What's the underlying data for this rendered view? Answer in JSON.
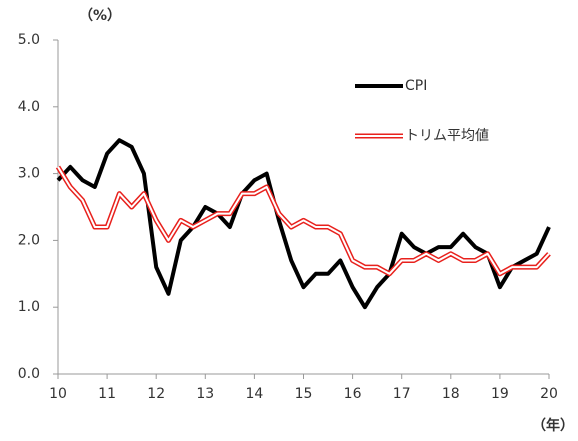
{
  "chart_data": {
    "type": "line",
    "y_label": "（%）",
    "x_label": "（年）",
    "x": [
      10,
      10.25,
      10.5,
      10.75,
      11,
      11.25,
      11.5,
      11.75,
      12,
      12.25,
      12.5,
      12.75,
      13,
      13.25,
      13.5,
      13.75,
      14,
      14.25,
      14.5,
      14.75,
      15,
      15.25,
      15.5,
      15.75,
      16,
      16.25,
      16.5,
      16.75,
      17,
      17.25,
      17.5,
      17.75,
      18,
      18.25,
      18.5,
      18.75,
      19,
      19.25,
      19.5,
      19.75,
      20
    ],
    "series": [
      {
        "name": "CPI",
        "color": "#000000",
        "style": "solid",
        "values": [
          2.9,
          3.1,
          2.9,
          2.8,
          3.3,
          3.5,
          3.4,
          3.0,
          1.6,
          1.2,
          2.0,
          2.2,
          2.5,
          2.4,
          2.2,
          2.7,
          2.9,
          3.0,
          2.3,
          1.7,
          1.3,
          1.5,
          1.5,
          1.7,
          1.3,
          1.0,
          1.3,
          1.5,
          2.1,
          1.9,
          1.8,
          1.9,
          1.9,
          2.1,
          1.9,
          1.8,
          1.3,
          1.6,
          1.7,
          1.8,
          2.2
        ]
      },
      {
        "name": "トリム平均値",
        "color": "#e8211d",
        "style": "double",
        "values": [
          3.1,
          2.8,
          2.6,
          2.2,
          2.2,
          2.7,
          2.5,
          2.7,
          2.3,
          2.0,
          2.3,
          2.2,
          2.3,
          2.4,
          2.4,
          2.7,
          2.7,
          2.8,
          2.4,
          2.2,
          2.3,
          2.2,
          2.2,
          2.1,
          1.7,
          1.6,
          1.6,
          1.5,
          1.7,
          1.7,
          1.8,
          1.7,
          1.8,
          1.7,
          1.7,
          1.8,
          1.5,
          1.6,
          1.6,
          1.6,
          1.8
        ]
      }
    ],
    "xlim": [
      10,
      20
    ],
    "xticks": [
      10,
      11,
      12,
      13,
      14,
      15,
      16,
      17,
      18,
      19,
      20
    ],
    "ylim": [
      0,
      5
    ],
    "yticks": [
      {
        "value": 0,
        "label": "0.0"
      },
      {
        "value": 1,
        "label": "1.0"
      },
      {
        "value": 2,
        "label": "2.0"
      },
      {
        "value": 3,
        "label": "3.0"
      },
      {
        "value": 4,
        "label": "4.0"
      },
      {
        "value": 5,
        "label": "5.0"
      }
    ],
    "grid": false,
    "legend": "upper right"
  }
}
